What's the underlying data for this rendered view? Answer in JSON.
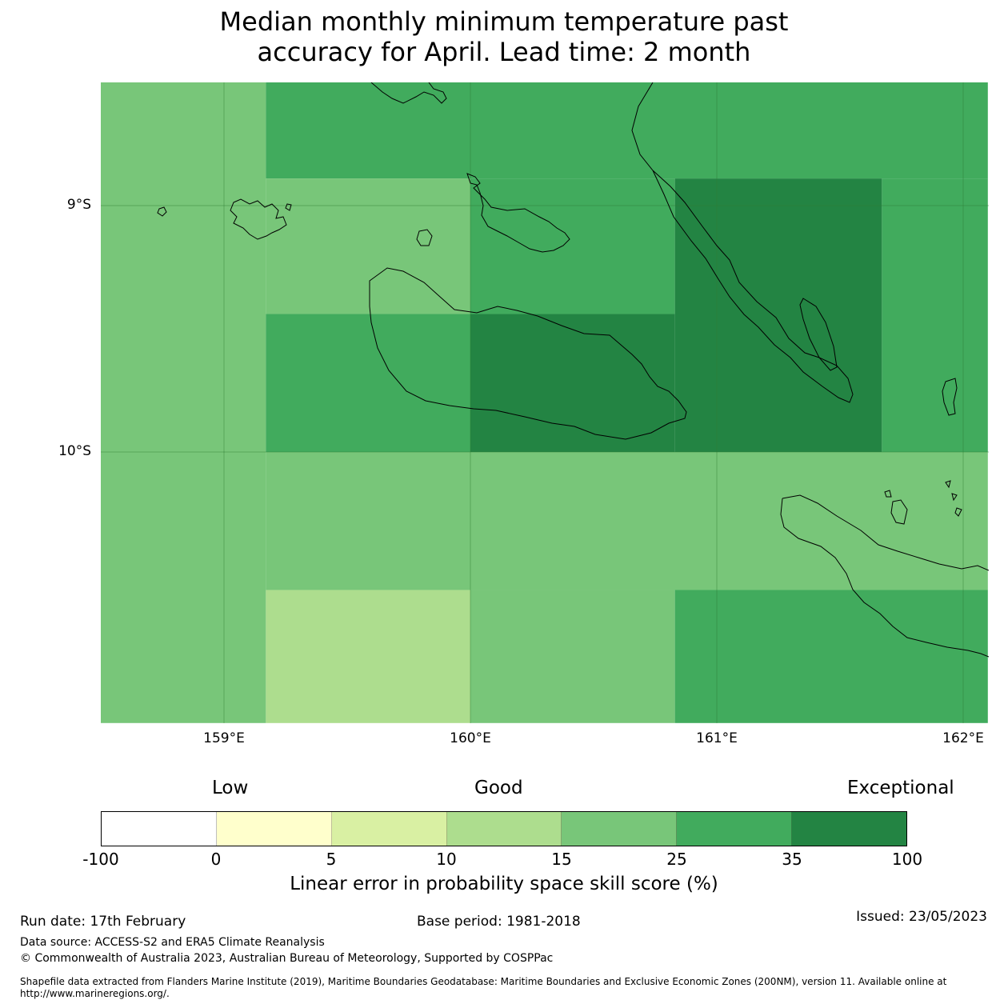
{
  "title": {
    "line1": "Median monthly minimum temperature past",
    "line2": "accuracy for April. Lead time: 2 month"
  },
  "map": {
    "lat_labels": [
      "9°S",
      "10°S"
    ],
    "lon_labels": [
      "159°E",
      "160°E",
      "161°E",
      "162°E"
    ],
    "cells": [
      {
        "lon_from": 158.5,
        "lon_to": 159.17,
        "lat_from": -8.5,
        "lat_to": -11.1,
        "bin": 4
      },
      {
        "lon_from": 159.17,
        "lon_to": 162.1,
        "lat_from": -8.5,
        "lat_to": -8.89,
        "bin": 5
      },
      {
        "lon_from": 159.17,
        "lon_to": 160.0,
        "lat_from": -8.89,
        "lat_to": -9.44,
        "bin": 4
      },
      {
        "lon_from": 160.0,
        "lon_to": 160.83,
        "lat_from": -8.89,
        "lat_to": -9.44,
        "bin": 5
      },
      {
        "lon_from": 160.83,
        "lon_to": 161.67,
        "lat_from": -8.89,
        "lat_to": -10.0,
        "bin": 6
      },
      {
        "lon_from": 161.67,
        "lon_to": 162.1,
        "lat_from": -8.89,
        "lat_to": -10.0,
        "bin": 5
      },
      {
        "lon_from": 159.17,
        "lon_to": 160.0,
        "lat_from": -9.44,
        "lat_to": -10.0,
        "bin": 5
      },
      {
        "lon_from": 160.0,
        "lon_to": 160.83,
        "lat_from": -9.44,
        "lat_to": -10.0,
        "bin": 6
      },
      {
        "lon_from": 159.17,
        "lon_to": 162.1,
        "lat_from": -10.0,
        "lat_to": -10.56,
        "bin": 4
      },
      {
        "lon_from": 159.17,
        "lon_to": 160.0,
        "lat_from": -10.56,
        "lat_to": -11.1,
        "bin": 3
      },
      {
        "lon_from": 160.0,
        "lon_to": 160.83,
        "lat_from": -10.56,
        "lat_to": -11.1,
        "bin": 4
      },
      {
        "lon_from": 160.83,
        "lon_to": 162.1,
        "lat_from": -10.56,
        "lat_to": -11.1,
        "bin": 5
      }
    ]
  },
  "legend": {
    "categories": [
      "Low",
      "Good",
      "Exceptional"
    ],
    "colors": [
      "#ffffff",
      "#ffffcc",
      "#d9f0a3",
      "#addd8e",
      "#78c679",
      "#41ab5d",
      "#238443"
    ],
    "ticks": [
      "-100",
      "0",
      "5",
      "10",
      "15",
      "25",
      "35",
      "100"
    ],
    "title": "Linear error in probability space skill score (%)"
  },
  "footer": {
    "run_date": "Run date: 17th February",
    "base_period": "Base period: 1981-2018",
    "issued": "Issued: 23/05/2023",
    "data_source": "Data source: ACCESS-S2 and ERA5 Climate Reanalysis",
    "copyright": "© Commonwealth of Australia 2023, Australian Bureau of Meteorology, Supported by COSPPac",
    "shapefile": "Shapefile data extracted from Flanders Marine Institute (2019), Maritime Boundaries Geodatabase: Maritime Boundaries and Exclusive Economic Zones (200NM), version 11. Available online at http://www.marineregions.org/."
  }
}
